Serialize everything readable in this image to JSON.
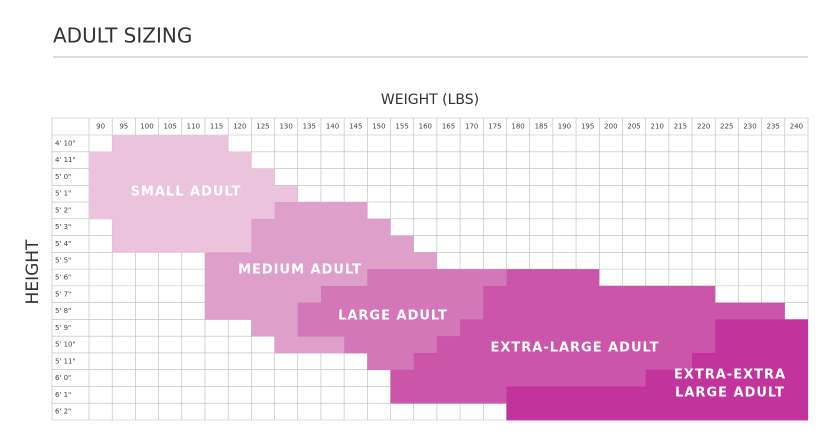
{
  "title": "ADULT SIZING",
  "x_label": "WEIGHT (LBS)",
  "y_label": "HEIGHT",
  "weights": [
    90,
    95,
    100,
    105,
    110,
    115,
    120,
    125,
    130,
    135,
    140,
    145,
    150,
    155,
    160,
    165,
    170,
    175,
    180,
    185,
    190,
    195,
    200,
    205,
    210,
    215,
    220,
    225,
    230,
    235,
    240
  ],
  "heights": [
    "4' 10\"",
    "4' 11\"",
    "5' 0\"",
    "5' 1\"",
    "5' 2\"",
    "5' 3\"",
    "5' 4\"",
    "5' 5\"",
    "5' 6\"",
    "5' 7\"",
    "5' 8\"",
    "5' 9\"",
    "5' 10\"",
    "5' 11\"",
    "6' 0\"",
    "6' 1\"",
    "6' 2\""
  ],
  "regions": [
    {
      "label": [
        "SMALL ADULT"
      ],
      "color": "#ebc3dd",
      "rows": [
        [
          95,
          115
        ],
        [
          90,
          120
        ],
        [
          90,
          125
        ],
        [
          90,
          130
        ],
        [
          90,
          125
        ],
        [
          95,
          120
        ],
        [
          95,
          120
        ],
        null,
        null,
        null,
        null,
        null,
        null,
        null,
        null,
        null,
        null
      ]
    },
    {
      "label": [
        "MEDIUM ADULT"
      ],
      "color": "#df9fcb",
      "rows": [
        null,
        null,
        null,
        null,
        [
          130,
          145
        ],
        [
          125,
          150
        ],
        [
          125,
          155
        ],
        [
          115,
          160
        ],
        [
          115,
          165
        ],
        [
          115,
          165
        ],
        [
          115,
          160
        ],
        [
          125,
          155
        ],
        [
          130,
          140
        ],
        null,
        null,
        null,
        null
      ]
    },
    {
      "label": [
        "LARGE ADULT"
      ],
      "color": "#d377b8",
      "rows": [
        null,
        null,
        null,
        null,
        null,
        null,
        null,
        null,
        [
          150,
          175
        ],
        [
          140,
          180
        ],
        [
          135,
          180
        ],
        [
          135,
          175
        ],
        [
          145,
          170
        ],
        [
          150,
          160
        ],
        null,
        null,
        null
      ]
    },
    {
      "label": [
        "EXTRA-LARGE ADULT"
      ],
      "color": "#cb55a8",
      "rows": [
        null,
        null,
        null,
        null,
        null,
        null,
        null,
        null,
        [
          180,
          195
        ],
        [
          175,
          220
        ],
        [
          175,
          235
        ],
        [
          170,
          235
        ],
        [
          165,
          235
        ],
        [
          160,
          220
        ],
        [
          155,
          215
        ],
        [
          155,
          205
        ],
        null
      ]
    },
    {
      "label": [
        "EXTRA-EXTRA",
        "LARGE ADULT"
      ],
      "color": "#c2339c",
      "rows": [
        null,
        null,
        null,
        null,
        null,
        null,
        null,
        null,
        null,
        null,
        null,
        [
          225,
          240
        ],
        [
          225,
          240
        ],
        [
          220,
          240
        ],
        [
          210,
          240
        ],
        [
          180,
          240
        ],
        [
          180,
          240
        ]
      ]
    }
  ]
}
